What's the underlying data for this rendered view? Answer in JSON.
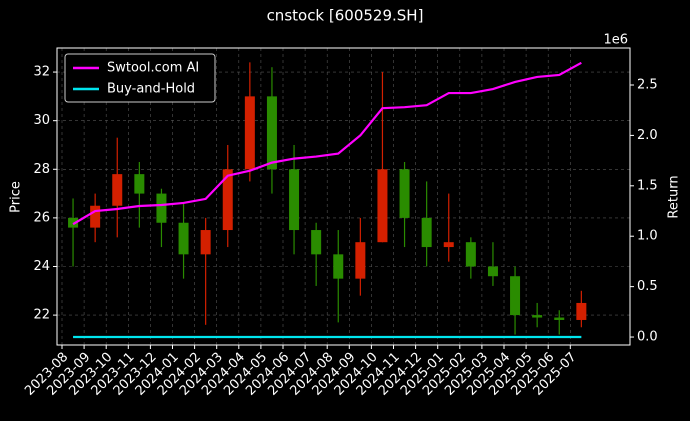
{
  "chart_data": {
    "type": "candlestick",
    "title": "cnstock [600529.SH]",
    "ylabel": "Price",
    "y2label": "Return",
    "y2_offset_label": "1e6",
    "x": [
      "2023-08",
      "2023-09",
      "2023-10",
      "2023-11",
      "2023-12",
      "2024-01",
      "2024-02",
      "2024-03",
      "2024-04",
      "2024-05",
      "2024-06",
      "2024-07",
      "2024-08",
      "2024-09",
      "2024-10",
      "2024-11",
      "2024-12",
      "2025-01",
      "2025-02",
      "2025-03",
      "2025-04",
      "2025-05",
      "2025-06",
      "2025-07"
    ],
    "open": [
      26.0,
      25.6,
      26.5,
      27.8,
      27.0,
      25.8,
      24.5,
      25.5,
      28.0,
      31.0,
      28.0,
      25.5,
      24.5,
      23.5,
      25.0,
      28.0,
      26.0,
      24.8,
      25.0,
      24.0,
      23.6,
      22.0,
      21.9,
      21.8
    ],
    "high": [
      26.8,
      27.0,
      29.3,
      28.3,
      27.2,
      26.6,
      26.0,
      29.0,
      32.4,
      32.2,
      29.0,
      25.8,
      25.5,
      26.0,
      32.0,
      28.3,
      27.5,
      27.0,
      25.2,
      25.0,
      24.0,
      22.5,
      22.2,
      23.0
    ],
    "low": [
      24.0,
      25.0,
      25.2,
      25.6,
      24.8,
      23.5,
      21.6,
      24.8,
      27.5,
      27.0,
      24.5,
      23.2,
      21.7,
      22.8,
      25.0,
      24.8,
      24.0,
      24.2,
      23.5,
      23.2,
      21.2,
      21.5,
      21.2,
      21.5
    ],
    "close": [
      25.6,
      26.5,
      27.8,
      27.0,
      25.8,
      24.5,
      25.5,
      28.0,
      31.0,
      28.0,
      25.5,
      24.5,
      23.5,
      25.0,
      28.0,
      26.0,
      24.8,
      25.0,
      24.0,
      23.6,
      22.0,
      21.9,
      21.8,
      22.5
    ],
    "up_color": "#d42000",
    "down_color": "#2a8c00",
    "ylim": [
      20.77,
      32.99
    ],
    "yticks": [
      22,
      24,
      26,
      28,
      30,
      32
    ],
    "y2lim": [
      -79000,
      2867000
    ],
    "y2ticks": [
      {
        "value": 0,
        "label": "0.0"
      },
      {
        "value": 500000,
        "label": "0.5"
      },
      {
        "value": 1000000,
        "label": "1.0"
      },
      {
        "value": 1500000,
        "label": "1.5"
      },
      {
        "value": 2000000,
        "label": "2.0"
      },
      {
        "value": 2500000,
        "label": "2.5"
      }
    ],
    "grid": true,
    "legend": "upper left",
    "series": [
      {
        "name": "Swtool.com AI",
        "color": "#ff00ff",
        "axis": "y2",
        "values": [
          1120000,
          1250000,
          1270000,
          1300000,
          1310000,
          1330000,
          1370000,
          1600000,
          1650000,
          1730000,
          1770000,
          1790000,
          1820000,
          2000000,
          2270000,
          2280000,
          2300000,
          2420000,
          2420000,
          2460000,
          2530000,
          2580000,
          2600000,
          2720000
        ]
      },
      {
        "name": "Buy-and-Hold",
        "color": "#00e5ee",
        "axis": "y2",
        "values": [
          0,
          0,
          0,
          0,
          0,
          0,
          0,
          0,
          0,
          0,
          0,
          0,
          0,
          0,
          0,
          0,
          0,
          0,
          0,
          0,
          0,
          0,
          0,
          0
        ]
      }
    ]
  }
}
